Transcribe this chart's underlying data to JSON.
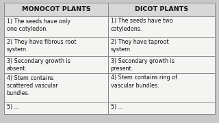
{
  "col1_header": "MONOCOT PLANTS",
  "col2_header": "DICOT PLANTS",
  "rows": [
    [
      "1) The seeds have only\none cotyledon.",
      "1) The seeds have two\ncotyledons."
    ],
    [
      "2) They have fibrous root\nsystem.",
      "2) They have taproot\nsystem."
    ],
    [
      "3) Secondary growth is\nabsent.",
      "3) Secondary growth is\npresent."
    ],
    [
      "4) Stem contains\nscattered vascular\nbundles.",
      "4) Stem contains ring of\nvascular bundles."
    ],
    [
      "5) ...",
      "5) ..."
    ]
  ],
  "bg_color": "#c8c8c8",
  "header_bg": "#d8d8d8",
  "cell_bg": "#f4f4f2",
  "border_color": "#888888",
  "text_color": "#111111",
  "header_fontsize": 6.8,
  "cell_fontsize": 5.8,
  "fig_width": 3.2,
  "fig_height": 1.8
}
